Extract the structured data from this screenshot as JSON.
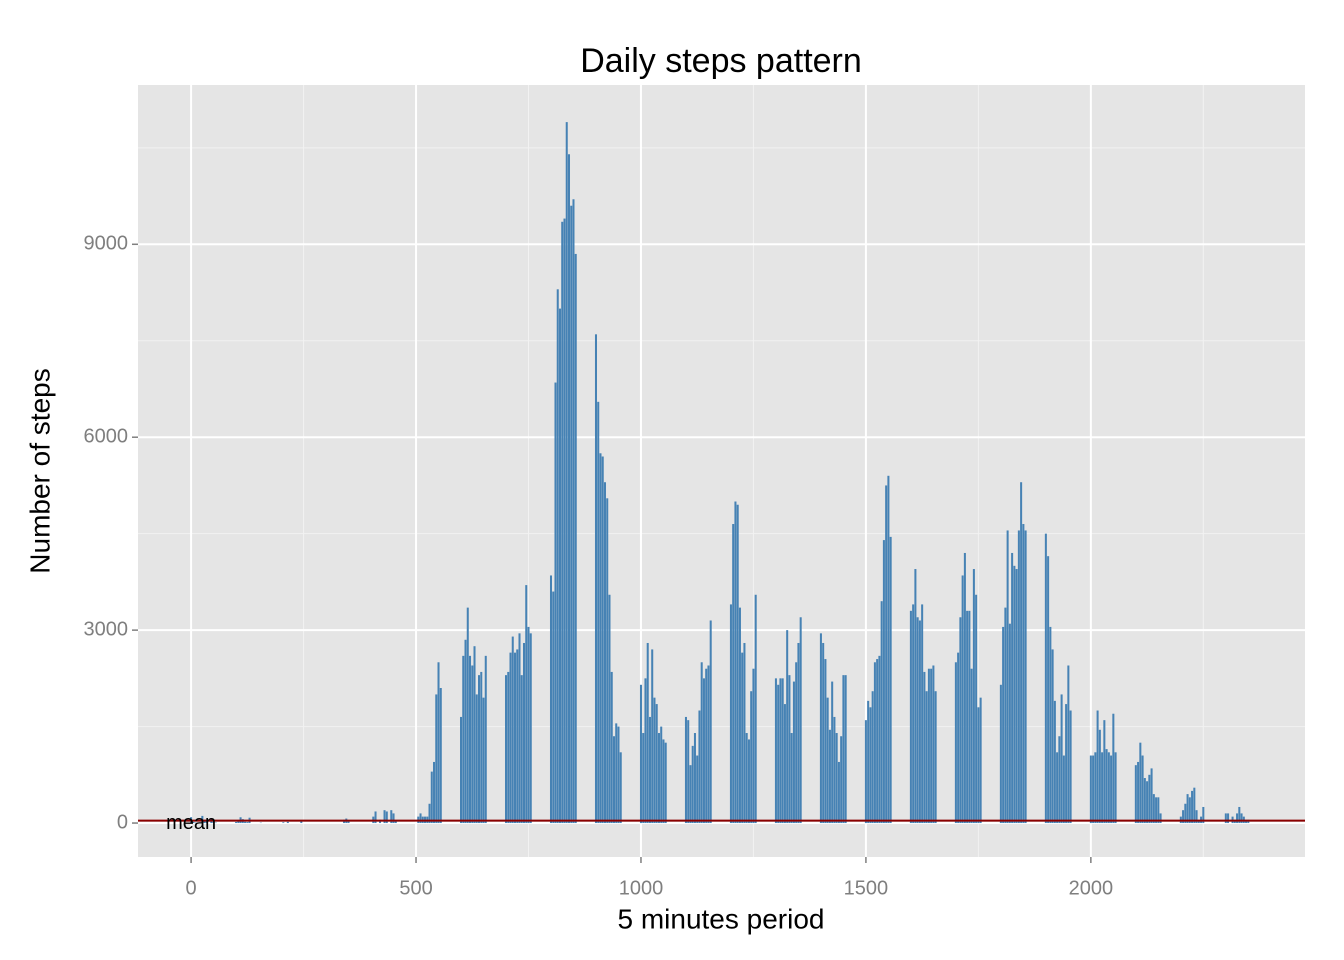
{
  "chart_data": {
    "type": "bar",
    "title": "Daily steps pattern",
    "xlabel": "5 minutes period",
    "ylabel": "Number of steps",
    "color": "#4682b4",
    "x": [
      0,
      5,
      10,
      15,
      20,
      25,
      30,
      35,
      40,
      45,
      50,
      55,
      100,
      105,
      110,
      115,
      120,
      125,
      130,
      135,
      140,
      145,
      150,
      155,
      200,
      205,
      210,
      215,
      220,
      225,
      230,
      235,
      240,
      245,
      250,
      255,
      300,
      305,
      310,
      315,
      320,
      325,
      330,
      335,
      340,
      345,
      350,
      355,
      400,
      405,
      410,
      415,
      420,
      425,
      430,
      435,
      440,
      445,
      450,
      455,
      500,
      505,
      510,
      515,
      520,
      525,
      530,
      535,
      540,
      545,
      550,
      555,
      600,
      605,
      610,
      615,
      620,
      625,
      630,
      635,
      640,
      645,
      650,
      655,
      700,
      705,
      710,
      715,
      720,
      725,
      730,
      735,
      740,
      745,
      750,
      755,
      800,
      805,
      810,
      815,
      820,
      825,
      830,
      835,
      840,
      845,
      850,
      855,
      900,
      905,
      910,
      915,
      920,
      925,
      930,
      935,
      940,
      945,
      950,
      955,
      1000,
      1005,
      1010,
      1015,
      1020,
      1025,
      1030,
      1035,
      1040,
      1045,
      1050,
      1055,
      1100,
      1105,
      1110,
      1115,
      1120,
      1125,
      1130,
      1135,
      1140,
      1145,
      1150,
      1155,
      1200,
      1205,
      1210,
      1215,
      1220,
      1225,
      1230,
      1235,
      1240,
      1245,
      1250,
      1255,
      1300,
      1305,
      1310,
      1315,
      1320,
      1325,
      1330,
      1335,
      1340,
      1345,
      1350,
      1355,
      1400,
      1405,
      1410,
      1415,
      1420,
      1425,
      1430,
      1435,
      1440,
      1445,
      1450,
      1455,
      1500,
      1505,
      1510,
      1515,
      1520,
      1525,
      1530,
      1535,
      1540,
      1545,
      1550,
      1555,
      1600,
      1605,
      1610,
      1615,
      1620,
      1625,
      1630,
      1635,
      1640,
      1645,
      1650,
      1655,
      1700,
      1705,
      1710,
      1715,
      1720,
      1725,
      1730,
      1735,
      1740,
      1745,
      1750,
      1755,
      1800,
      1805,
      1810,
      1815,
      1820,
      1825,
      1830,
      1835,
      1840,
      1845,
      1850,
      1855,
      1900,
      1905,
      1910,
      1915,
      1920,
      1925,
      1930,
      1935,
      1940,
      1945,
      1950,
      1955,
      2000,
      2005,
      2010,
      2015,
      2020,
      2025,
      2030,
      2035,
      2040,
      2045,
      2050,
      2055,
      2100,
      2105,
      2110,
      2115,
      2120,
      2125,
      2130,
      2135,
      2140,
      2145,
      2150,
      2155,
      2200,
      2205,
      2210,
      2215,
      2220,
      2225,
      2230,
      2235,
      2240,
      2245,
      2250,
      2255,
      2300,
      2305,
      2310,
      2315,
      2320,
      2325,
      2330,
      2335,
      2340,
      2345,
      2350,
      2355
    ],
    "values": [
      91,
      18,
      7,
      8,
      4,
      111,
      28,
      46,
      0,
      78,
      16,
      7,
      17,
      39,
      90,
      61,
      20,
      15,
      83,
      0,
      0,
      0,
      0,
      6,
      0,
      12,
      0,
      19,
      0,
      0,
      0,
      0,
      0,
      40,
      0,
      0,
      0,
      0,
      0,
      0,
      0,
      0,
      0,
      0,
      51,
      70,
      30,
      0,
      0,
      100,
      180,
      0,
      50,
      0,
      200,
      180,
      0,
      200,
      150,
      40,
      0,
      100,
      150,
      100,
      100,
      100,
      300,
      800,
      950,
      2000,
      2500,
      2100,
      1650,
      2600,
      2850,
      3350,
      2600,
      2450,
      2750,
      2000,
      2300,
      2350,
      1950,
      2600,
      2300,
      2350,
      2650,
      2900,
      2650,
      2700,
      2950,
      2300,
      2800,
      3700,
      3050,
      2950,
      3850,
      3600,
      6850,
      8300,
      8000,
      9350,
      9400,
      10900,
      10400,
      9600,
      9700,
      8850,
      7600,
      6550,
      5750,
      5700,
      5300,
      5050,
      3550,
      2350,
      1350,
      1550,
      1500,
      1100,
      2150,
      1400,
      2250,
      2800,
      1650,
      2700,
      1950,
      1850,
      1400,
      1500,
      1300,
      1250,
      1650,
      1600,
      900,
      1200,
      1400,
      1050,
      1750,
      2500,
      2250,
      2400,
      2450,
      3150,
      3400,
      4650,
      5000,
      4950,
      3350,
      2650,
      2800,
      1400,
      1300,
      2050,
      2400,
      3550,
      2250,
      2150,
      2250,
      2250,
      1850,
      3000,
      2300,
      1400,
      2200,
      2500,
      2800,
      3200,
      2950,
      2800,
      2550,
      1950,
      1450,
      2200,
      1650,
      1400,
      950,
      1350,
      2300,
      2300,
      1600,
      1900,
      1800,
      2050,
      2500,
      2550,
      2600,
      3450,
      4400,
      5250,
      5400,
      4450,
      3300,
      3400,
      3950,
      3200,
      3150,
      3400,
      2350,
      2050,
      2400,
      2400,
      2450,
      2050,
      2500,
      2650,
      3200,
      3850,
      4200,
      3300,
      3300,
      2400,
      3950,
      3550,
      1800,
      1950,
      2150,
      3050,
      3350,
      4550,
      3100,
      4200,
      4000,
      3950,
      4550,
      5300,
      4650,
      4550,
      4500,
      4150,
      3050,
      2700,
      1900,
      1100,
      1350,
      2000,
      1050,
      1850,
      2450,
      1750,
      1050,
      1050,
      1100,
      1750,
      1450,
      1100,
      1600,
      1150,
      1100,
      1050,
      1700,
      1100,
      900,
      950,
      1250,
      1050,
      700,
      650,
      750,
      850,
      450,
      400,
      400,
      150,
      100,
      200,
      300,
      450,
      400,
      500,
      550,
      200,
      50,
      100,
      250,
      0,
      150,
      150,
      0,
      100,
      50,
      150,
      250,
      150,
      100,
      50,
      50,
      0
    ],
    "mean_line": {
      "value": 37,
      "label": "mean",
      "color": "#8b0000"
    },
    "xlim": [
      -118,
      2476
    ],
    "ylim": [
      -528,
      11477
    ],
    "xticks": [
      0,
      500,
      1000,
      1500,
      2000
    ],
    "xminorticks": [
      250,
      750,
      1250,
      1750,
      2250
    ],
    "yticks": [
      0,
      3000,
      6000,
      9000
    ],
    "yminorticks": [
      1500,
      4500,
      7500,
      10500
    ],
    "grid": true
  }
}
